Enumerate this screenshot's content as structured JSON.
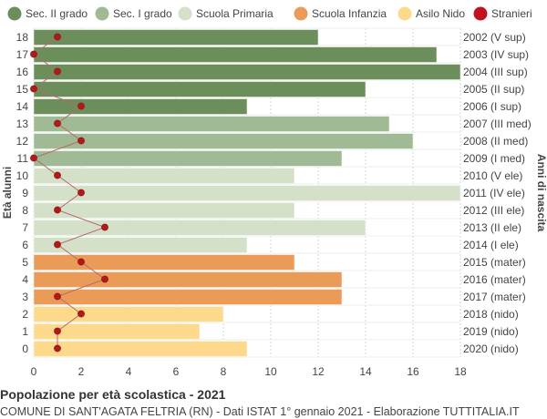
{
  "chart_data": {
    "type": "bar",
    "orientation": "horizontal",
    "title": "Popolazione per età scolastica - 2021",
    "subtitle": "COMUNE DI SANT'AGATA FELTRIA (RN) - Dati ISTAT 1° gennaio 2021 - Elaborazione TUTTITALIA.IT",
    "ylabel_left": "Età alunni",
    "ylabel_right": "Anni di nascita",
    "xlim": [
      0,
      18
    ],
    "xticks": [
      0,
      2,
      4,
      6,
      8,
      10,
      12,
      14,
      16,
      18
    ],
    "grid": true,
    "legend_position": "top",
    "legend": [
      {
        "name": "Sec. II grado",
        "color": "#6b8e5a"
      },
      {
        "name": "Sec. I grado",
        "color": "#9fba94"
      },
      {
        "name": "Scuola Primaria",
        "color": "#d5e0c8"
      },
      {
        "name": "Scuola Infanzia",
        "color": "#eb9b58"
      },
      {
        "name": "Asilo Nido",
        "color": "#fdd98c"
      },
      {
        "name": "Stranieri",
        "color": "#c0121f"
      }
    ],
    "rows": [
      {
        "age": "18",
        "birth": "2002 (V sup)",
        "value": 12,
        "group": 0,
        "stranieri": 1
      },
      {
        "age": "17",
        "birth": "2003 (IV sup)",
        "value": 17,
        "group": 0,
        "stranieri": 0
      },
      {
        "age": "16",
        "birth": "2004 (III sup)",
        "value": 18,
        "group": 0,
        "stranieri": 1
      },
      {
        "age": "15",
        "birth": "2005 (II sup)",
        "value": 14,
        "group": 0,
        "stranieri": 0
      },
      {
        "age": "14",
        "birth": "2006 (I sup)",
        "value": 9,
        "group": 0,
        "stranieri": 2
      },
      {
        "age": "13",
        "birth": "2007 (III med)",
        "value": 15,
        "group": 1,
        "stranieri": 1
      },
      {
        "age": "12",
        "birth": "2008 (II med)",
        "value": 16,
        "group": 1,
        "stranieri": 2
      },
      {
        "age": "11",
        "birth": "2009 (I med)",
        "value": 13,
        "group": 1,
        "stranieri": 0
      },
      {
        "age": "10",
        "birth": "2010 (V ele)",
        "value": 11,
        "group": 2,
        "stranieri": 1
      },
      {
        "age": "9",
        "birth": "2011 (IV ele)",
        "value": 18,
        "group": 2,
        "stranieri": 2
      },
      {
        "age": "8",
        "birth": "2012 (III ele)",
        "value": 11,
        "group": 2,
        "stranieri": 1
      },
      {
        "age": "7",
        "birth": "2013 (II ele)",
        "value": 14,
        "group": 2,
        "stranieri": 3
      },
      {
        "age": "6",
        "birth": "2014 (I ele)",
        "value": 9,
        "group": 2,
        "stranieri": 1
      },
      {
        "age": "5",
        "birth": "2015 (mater)",
        "value": 11,
        "group": 3,
        "stranieri": 2
      },
      {
        "age": "4",
        "birth": "2016 (mater)",
        "value": 13,
        "group": 3,
        "stranieri": 3
      },
      {
        "age": "3",
        "birth": "2017 (mater)",
        "value": 13,
        "group": 3,
        "stranieri": 1
      },
      {
        "age": "2",
        "birth": "2018 (nido)",
        "value": 8,
        "group": 4,
        "stranieri": 2
      },
      {
        "age": "1",
        "birth": "2019 (nido)",
        "value": 7,
        "group": 4,
        "stranieri": 1
      },
      {
        "age": "0",
        "birth": "2020 (nido)",
        "value": 9,
        "group": 4,
        "stranieri": 1
      }
    ]
  }
}
